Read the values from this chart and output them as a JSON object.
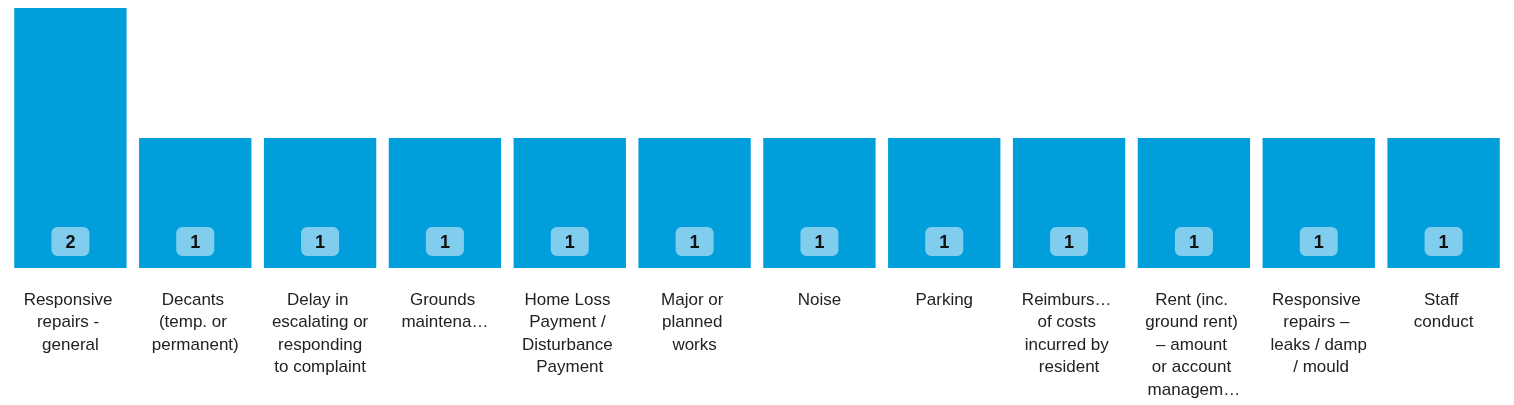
{
  "chart_data": {
    "type": "bar",
    "categories": [
      "Responsive repairs - general",
      "Decants (temp. or permanent)",
      "Delay in escalating or responding to complaint",
      "Grounds maintena…",
      "Home Loss Payment / Disturbance Payment",
      "Major or planned works",
      "Noise",
      "Parking",
      "Reimburs… of costs incurred by resident",
      "Rent (inc. ground rent) – amount or account managem…",
      "Responsive repairs – leaks / damp / mould",
      "Staff conduct"
    ],
    "values": [
      2,
      1,
      1,
      1,
      1,
      1,
      1,
      1,
      1,
      1,
      1,
      1
    ],
    "color": "#009fdb",
    "data_labels": true
  }
}
